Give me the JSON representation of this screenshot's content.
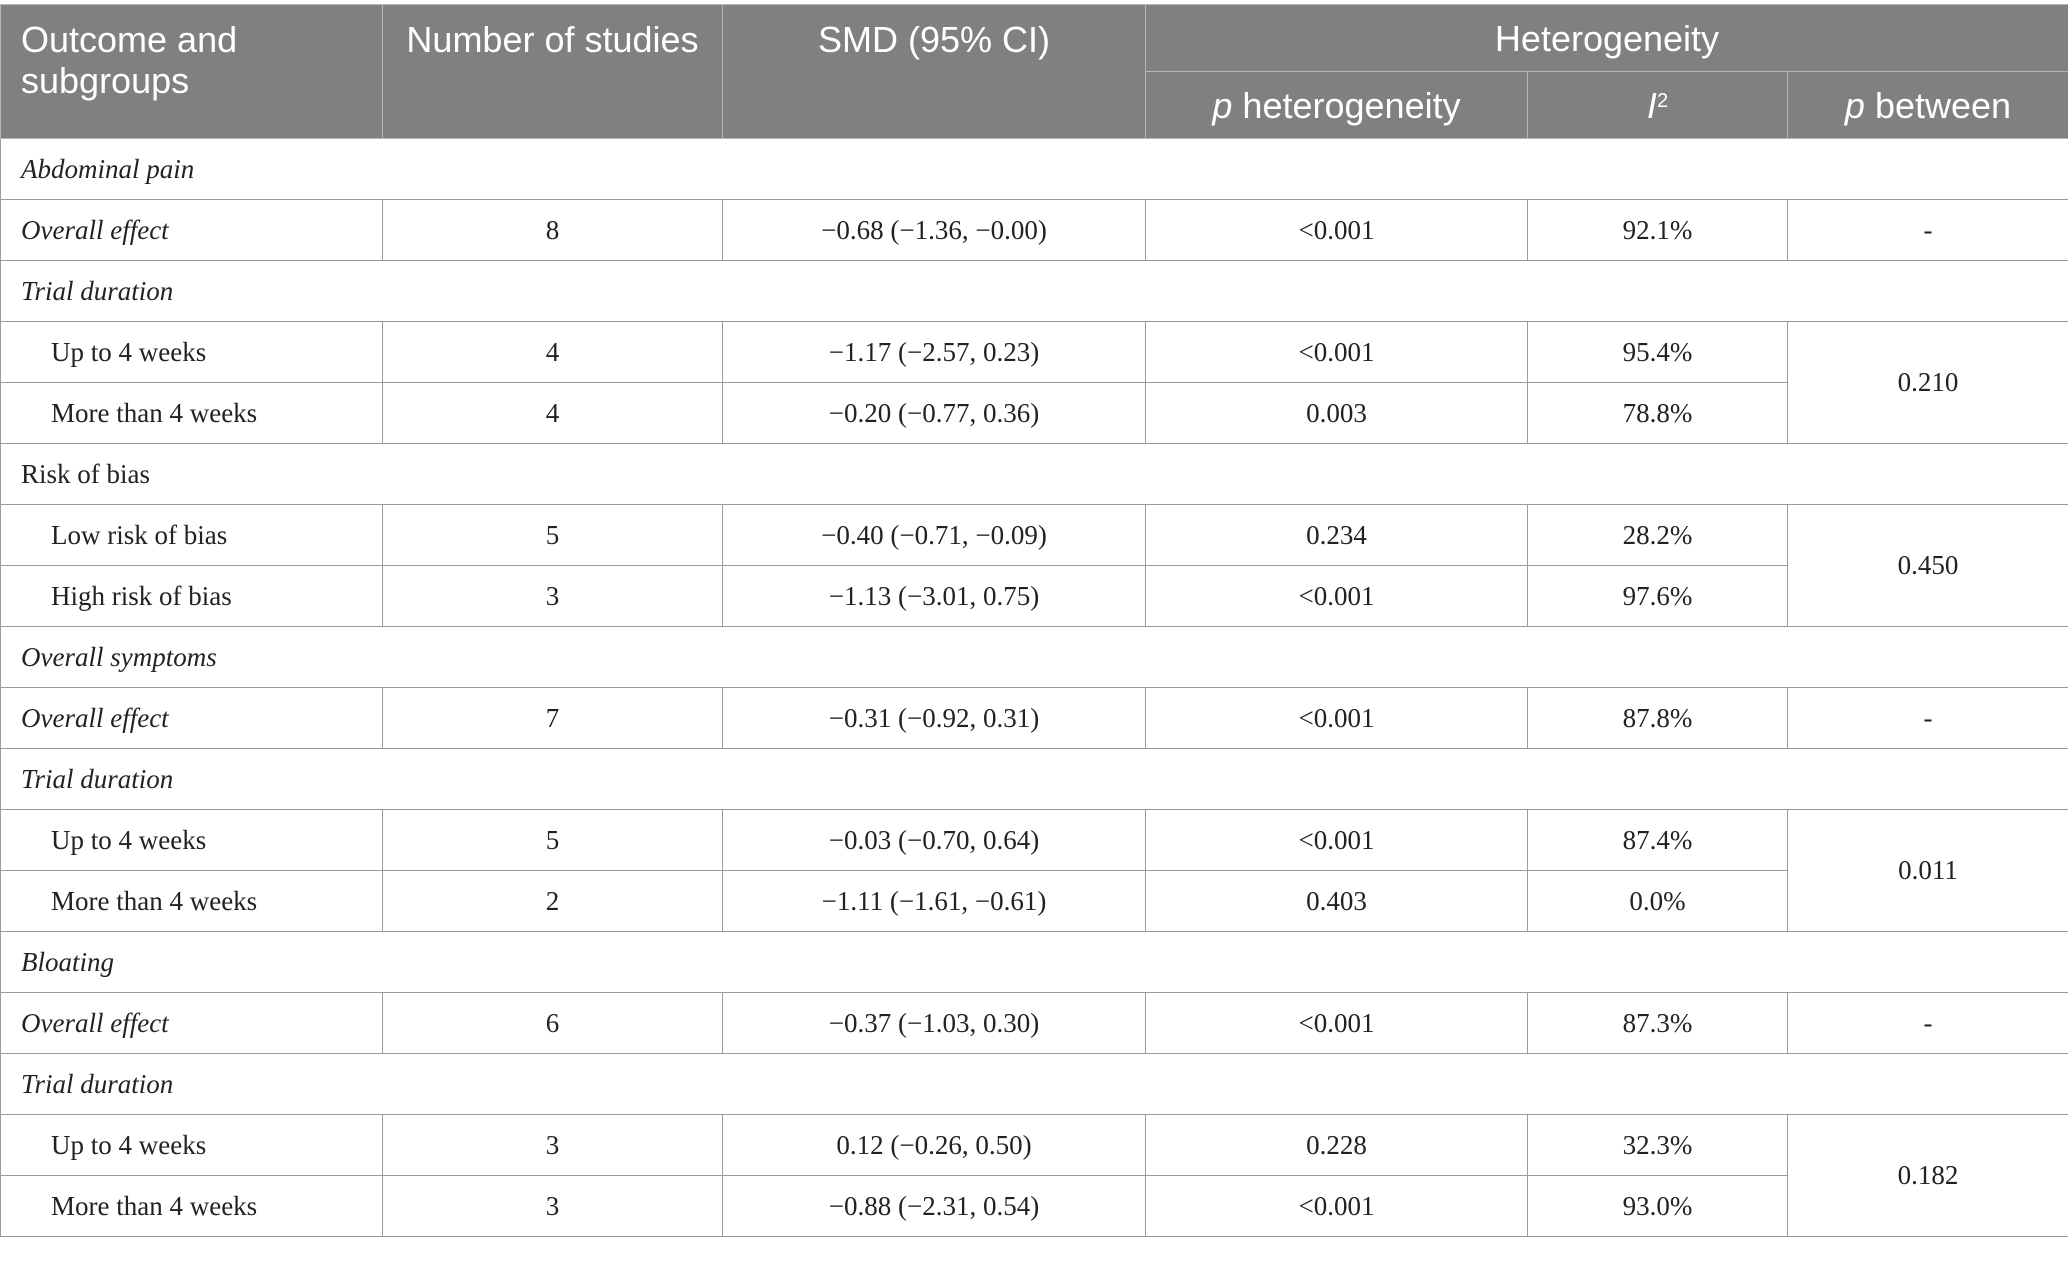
{
  "header": {
    "col1": "Outcome and subgroups",
    "col2": "Number of studies",
    "col3": "SMD (95% CI)",
    "heterogeneity": "Heterogeneity",
    "p_het_p": "p",
    "p_het_rest": " heterogeneity",
    "i2_letter": "I",
    "i2_sup": "2",
    "p_between_p": "p",
    "p_between_rest": " between"
  },
  "rows": {
    "r0": {
      "label": "Abdominal pain"
    },
    "r1": {
      "label": "Overall effect",
      "n": "8",
      "smd": "−0.68 (−1.36, −0.00)",
      "phet": "<0.001",
      "i2": "92.1%",
      "pbetween": "-"
    },
    "r2": {
      "label": "Trial duration"
    },
    "r3": {
      "label": "Up to 4 weeks",
      "n": "4",
      "smd": "−1.17 (−2.57, 0.23)",
      "phet": "<0.001",
      "i2": "95.4%",
      "pbetween": "0.210"
    },
    "r4": {
      "label": "More than 4 weeks",
      "n": "4",
      "smd": "−0.20 (−0.77, 0.36)",
      "phet": "0.003",
      "i2": "78.8%"
    },
    "r5": {
      "label": "Risk of bias"
    },
    "r6": {
      "label": "Low risk of bias",
      "n": "5",
      "smd": "−0.40 (−0.71, −0.09)",
      "phet": "0.234",
      "i2": "28.2%",
      "pbetween": "0.450"
    },
    "r7": {
      "label": "High risk of bias",
      "n": "3",
      "smd": "−1.13 (−3.01, 0.75)",
      "phet": "<0.001",
      "i2": "97.6%"
    },
    "r8": {
      "label": "Overall symptoms"
    },
    "r9": {
      "label": "Overall effect",
      "n": "7",
      "smd": "−0.31 (−0.92, 0.31)",
      "phet": "<0.001",
      "i2": "87.8%",
      "pbetween": "-"
    },
    "r10": {
      "label": "Trial duration"
    },
    "r11": {
      "label": "Up to 4 weeks",
      "n": "5",
      "smd": "−0.03 (−0.70, 0.64)",
      "phet": "<0.001",
      "i2": "87.4%",
      "pbetween": "0.011"
    },
    "r12": {
      "label": "More than 4 weeks",
      "n": "2",
      "smd": "−1.11 (−1.61, −0.61)",
      "phet": "0.403",
      "i2": "0.0%"
    },
    "r13": {
      "label": "Bloating"
    },
    "r14": {
      "label": "Overall effect",
      "n": "6",
      "smd": "−0.37 (−1.03, 0.30)",
      "phet": "<0.001",
      "i2": "87.3%",
      "pbetween": "-"
    },
    "r15": {
      "label": "Trial duration"
    },
    "r16": {
      "label": "Up to 4 weeks",
      "n": "3",
      "smd": "0.12 (−0.26, 0.50)",
      "phet": "0.228",
      "i2": "32.3%",
      "pbetween": "0.182"
    },
    "r17": {
      "label": "More than 4 weeks",
      "n": "3",
      "smd": "−0.88 (−2.31, 0.54)",
      "phet": "<0.001",
      "i2": "93.0%"
    }
  },
  "colors": {
    "header_bg": "#7f807f",
    "header_text": "#ffffff",
    "border": "#9a9a9a"
  }
}
